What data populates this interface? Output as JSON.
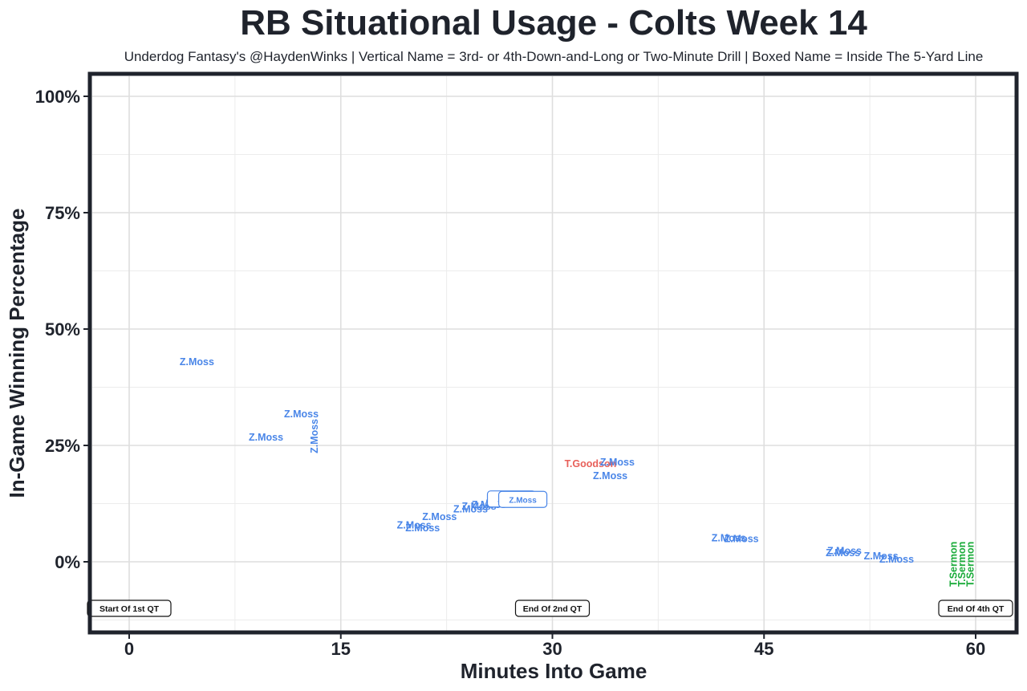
{
  "chart_data": {
    "type": "scatter",
    "title": "RB Situational Usage - Colts Week 14",
    "subtitle": "Underdog Fantasy's @HaydenWinks | Vertical Name = 3rd- or 4th-Down-and-Long or Two-Minute Drill | Boxed Name = Inside The 5-Yard Line",
    "xlabel": "Minutes Into Game",
    "ylabel": "In-Game Winning Percentage",
    "xlim": [
      -2.8,
      63
    ],
    "ylim": [
      -0.15,
      1.05
    ],
    "x_ticks": [
      {
        "value": 0,
        "label": "0"
      },
      {
        "value": 15,
        "label": "15"
      },
      {
        "value": 30,
        "label": "30"
      },
      {
        "value": 45,
        "label": "45"
      },
      {
        "value": 60,
        "label": "60"
      }
    ],
    "y_ticks": [
      {
        "value": 0,
        "label": "0%"
      },
      {
        "value": 0.25,
        "label": "25%"
      },
      {
        "value": 0.5,
        "label": "50%"
      },
      {
        "value": 0.75,
        "label": "75%"
      },
      {
        "value": 1.0,
        "label": "100%"
      }
    ],
    "grid": true,
    "colors": {
      "Z.Moss": "#4a86e8",
      "T.Goodson": "#e8605a",
      "T.Sermon": "#1aab3a"
    },
    "points": [
      {
        "x": 4.8,
        "y": 0.43,
        "player": "Z.Moss",
        "vertical": false,
        "boxed": false
      },
      {
        "x": 12.2,
        "y": 0.318,
        "player": "Z.Moss",
        "vertical": false,
        "boxed": false
      },
      {
        "x": 13.1,
        "y": 0.27,
        "player": "Z.Moss",
        "vertical": true,
        "boxed": false
      },
      {
        "x": 9.7,
        "y": 0.268,
        "player": "Z.Moss",
        "vertical": false,
        "boxed": false
      },
      {
        "x": 20.2,
        "y": 0.079,
        "player": "Z.Moss",
        "vertical": false,
        "boxed": false
      },
      {
        "x": 20.8,
        "y": 0.073,
        "player": "Z.Moss",
        "vertical": false,
        "boxed": false
      },
      {
        "x": 22.0,
        "y": 0.097,
        "player": "Z.Moss",
        "vertical": false,
        "boxed": false
      },
      {
        "x": 24.2,
        "y": 0.114,
        "player": "Z.Moss",
        "vertical": false,
        "boxed": false
      },
      {
        "x": 24.8,
        "y": 0.12,
        "player": "Z.Moss",
        "vertical": false,
        "boxed": false
      },
      {
        "x": 25.5,
        "y": 0.123,
        "player": "Z.Moss",
        "vertical": false,
        "boxed": false
      },
      {
        "x": 26.5,
        "y": 0.126,
        "player": "Z.Moss",
        "vertical": false,
        "boxed": false
      },
      {
        "x": 27.1,
        "y": 0.135,
        "player": "Z.Moss",
        "vertical": false,
        "boxed": true
      },
      {
        "x": 27.9,
        "y": 0.134,
        "player": "Z.Moss",
        "vertical": false,
        "boxed": true
      },
      {
        "x": 32.7,
        "y": 0.211,
        "player": "T.Goodson",
        "vertical": false,
        "boxed": false
      },
      {
        "x": 34.6,
        "y": 0.215,
        "player": "Z.Moss",
        "vertical": false,
        "boxed": false
      },
      {
        "x": 34.1,
        "y": 0.185,
        "player": "Z.Moss",
        "vertical": false,
        "boxed": false
      },
      {
        "x": 42.5,
        "y": 0.052,
        "player": "Z.Moss",
        "vertical": false,
        "boxed": false
      },
      {
        "x": 43.4,
        "y": 0.05,
        "player": "Z.Moss",
        "vertical": false,
        "boxed": false
      },
      {
        "x": 50.7,
        "y": 0.024,
        "player": "Z.Moss",
        "vertical": false,
        "boxed": false
      },
      {
        "x": 50.6,
        "y": 0.02,
        "player": "Z.Moss",
        "vertical": false,
        "boxed": false
      },
      {
        "x": 53.3,
        "y": 0.013,
        "player": "Z.Moss",
        "vertical": false,
        "boxed": false
      },
      {
        "x": 54.4,
        "y": 0.006,
        "player": "Z.Moss",
        "vertical": false,
        "boxed": false
      },
      {
        "x": 58.4,
        "y": -0.005,
        "player": "T.Sermon",
        "vertical": true,
        "boxed": false
      },
      {
        "x": 59.0,
        "y": -0.005,
        "player": "T.Sermon",
        "vertical": true,
        "boxed": false
      },
      {
        "x": 59.6,
        "y": -0.005,
        "player": "T.Sermon",
        "vertical": true,
        "boxed": false
      }
    ],
    "annotations": [
      {
        "x": 0,
        "y": -0.1,
        "text": "Start Of 1st QT"
      },
      {
        "x": 30,
        "y": -0.1,
        "text": "End Of 2nd QT"
      },
      {
        "x": 60,
        "y": -0.1,
        "text": "End Of 4th QT"
      }
    ]
  }
}
